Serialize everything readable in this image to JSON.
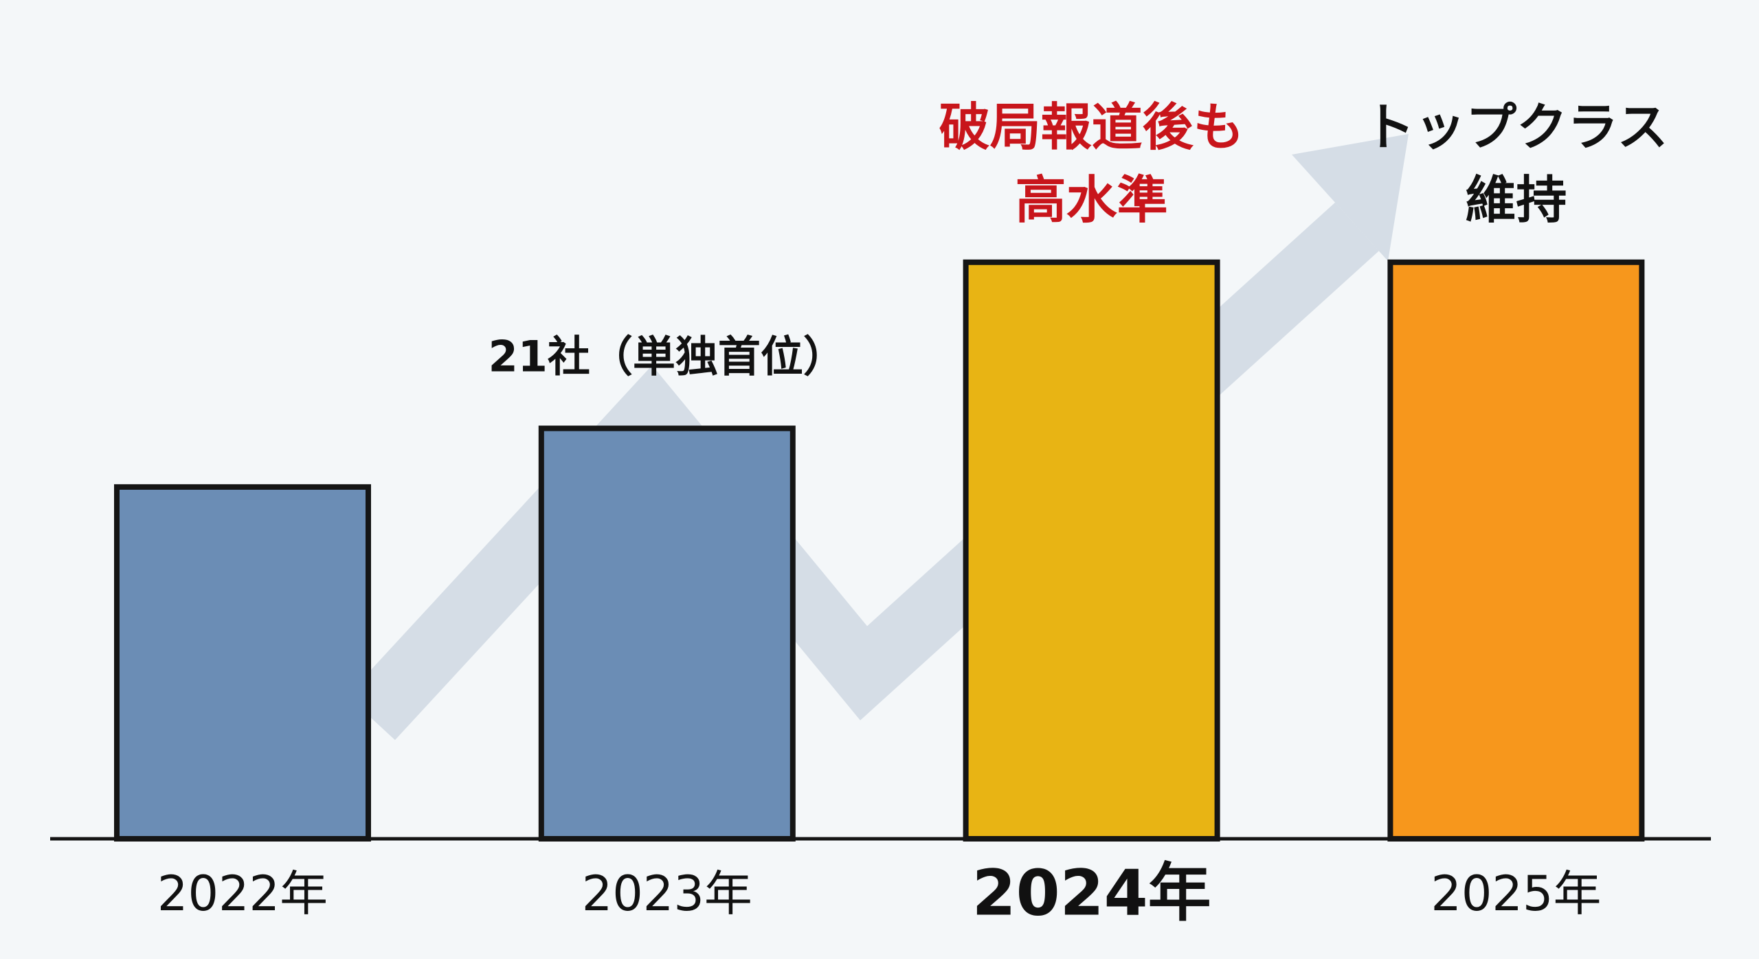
{
  "chart_data": {
    "type": "bar",
    "categories": [
      "2022年",
      "2023年",
      "2024年",
      "2025年"
    ],
    "values": [
      18,
      21,
      29.5,
      29.5
    ],
    "value_labels": [
      null,
      "21社（単独首位）",
      null,
      null
    ],
    "colors": [
      "#6b8db5",
      "#6b8db5",
      "#e8b414",
      "#f7971c"
    ],
    "ylim": [
      0,
      40
    ],
    "annotations": [
      {
        "lines": [
          "破局報道後も",
          "高水準"
        ],
        "color": "#c8151b"
      },
      {
        "lines": [
          "トップクラス",
          "維持"
        ],
        "color": "#111111"
      }
    ]
  }
}
